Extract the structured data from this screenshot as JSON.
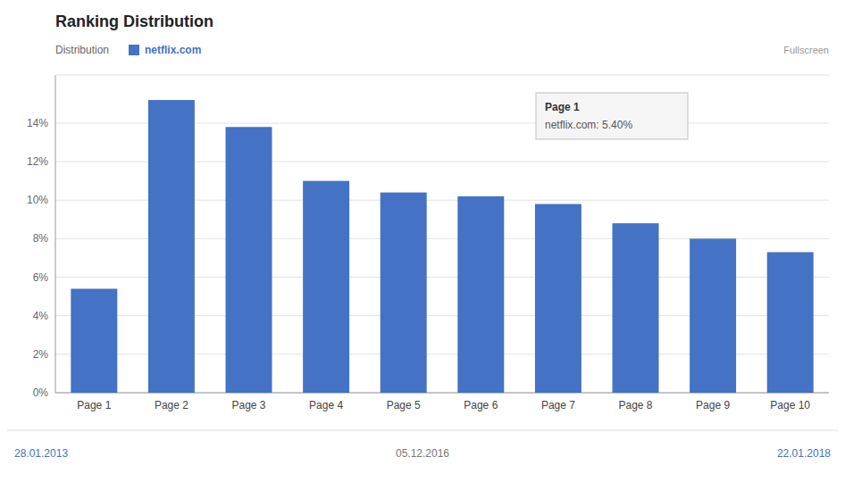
{
  "chart_data": {
    "type": "bar",
    "title": "Ranking Distribution",
    "categories": [
      "Page 1",
      "Page 2",
      "Page 3",
      "Page 4",
      "Page 5",
      "Page 6",
      "Page 7",
      "Page 8",
      "Page 9",
      "Page 10"
    ],
    "series": [
      {
        "name": "netflix.com",
        "color": "#4472c4",
        "values": [
          5.4,
          15.2,
          13.8,
          11.0,
          10.4,
          10.2,
          9.8,
          8.8,
          8.0,
          7.3
        ]
      }
    ],
    "ylim": [
      0,
      16.5
    ],
    "yticks": [
      {
        "value": 0,
        "label": "0%"
      },
      {
        "value": 2,
        "label": "2%"
      },
      {
        "value": 4,
        "label": "4%"
      },
      {
        "value": 6,
        "label": "6%"
      },
      {
        "value": 8,
        "label": "8%"
      },
      {
        "value": 10,
        "label": "10%"
      },
      {
        "value": 12,
        "label": "12%"
      },
      {
        "value": 14,
        "label": "14%"
      }
    ],
    "grid": true,
    "legend": "top-left",
    "annotations": [
      "Distribution",
      "Page 1",
      "netflix.com: 5.40%",
      "28.01.2013",
      "05.12.2016",
      "22.01.2018",
      "Fullscreen"
    ]
  }
}
